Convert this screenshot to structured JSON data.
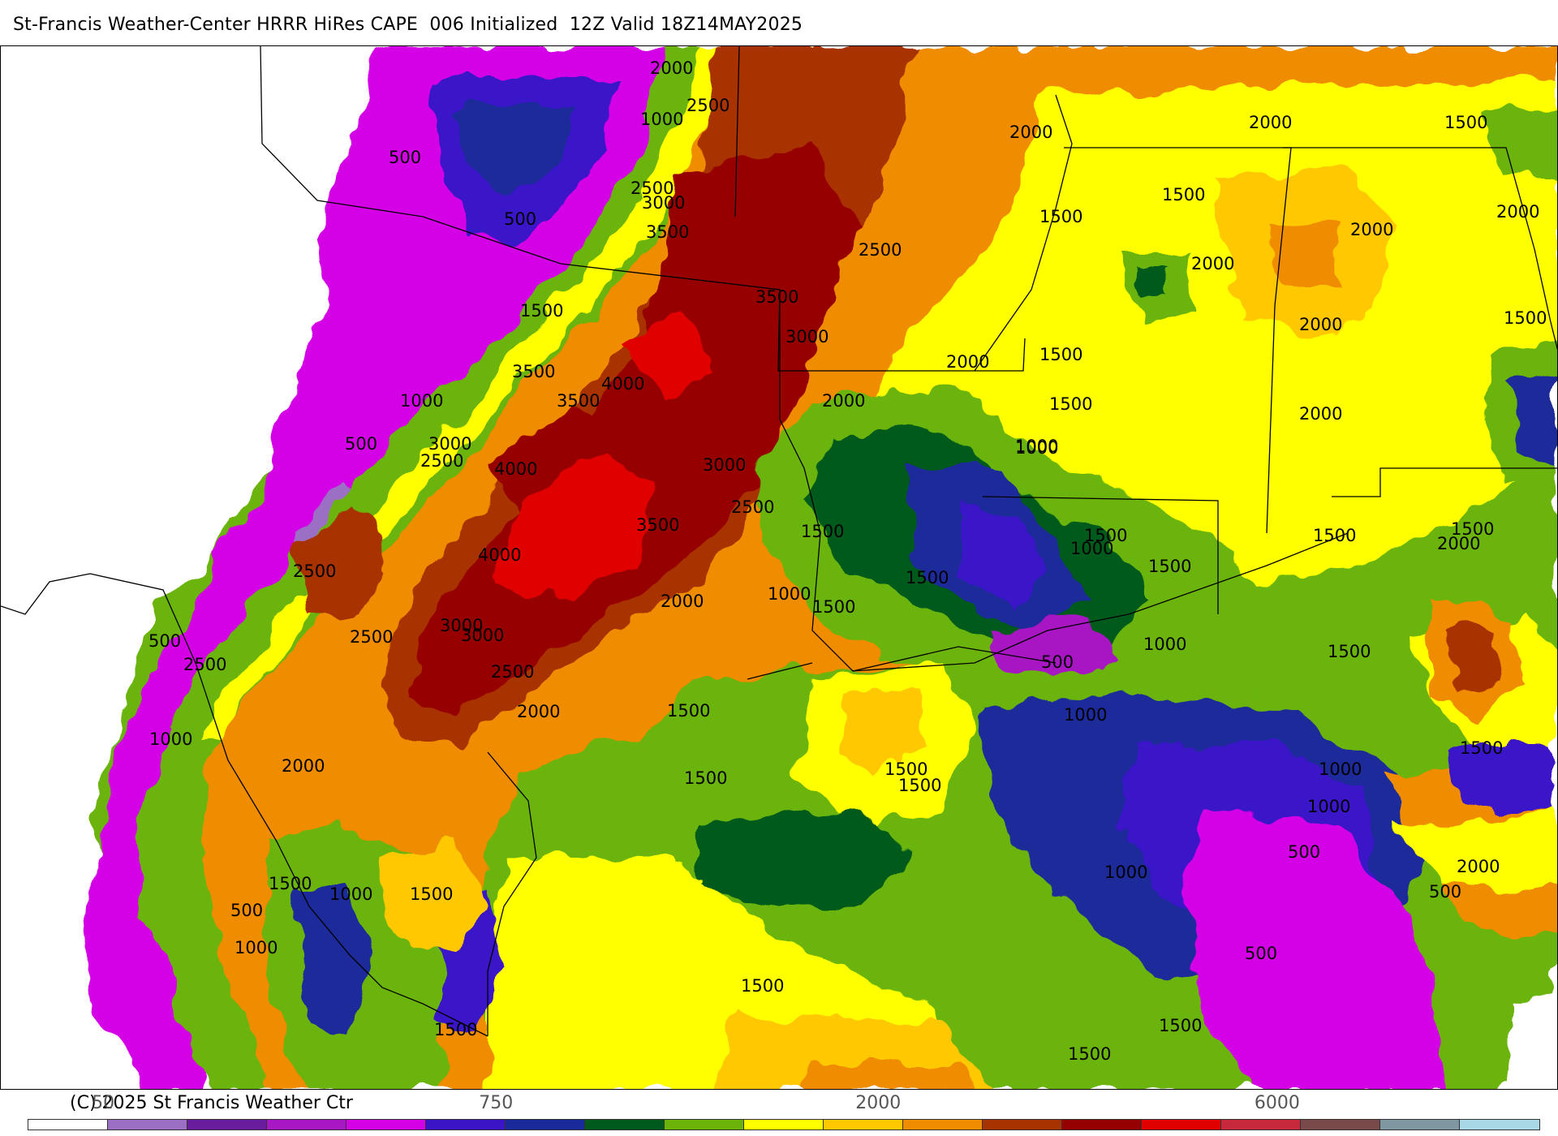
{
  "title": "St-Francis Weather-Center HRRR HiRes CAPE  006 Initialized  12Z Valid 18Z14MAY2025",
  "copyright": "(C) 2025 St Francis Weather Ctr",
  "legend": {
    "colors": [
      "#ffffff",
      "#9b6fc4",
      "#6a1c9e",
      "#a817c4",
      "#d400e6",
      "#3b14c8",
      "#1b2a9a",
      "#005a1e",
      "#6ab40a",
      "#ffff00",
      "#ffc800",
      "#ef8c00",
      "#a83200",
      "#960000",
      "#e10000",
      "#c8283c",
      "#7a4a4a",
      "#7f97a0",
      "#a8d8e6"
    ],
    "tick_labels": [
      {
        "text": "50",
        "at": 0.05
      },
      {
        "text": "750",
        "at": 0.31
      },
      {
        "text": "2000",
        "at": 0.563
      },
      {
        "text": "6000",
        "at": 0.827
      }
    ]
  },
  "contour_labels": [
    "2000",
    "2500",
    "1000",
    "500",
    "2500",
    "3000",
    "3500",
    "500",
    "1500",
    "3500",
    "3000",
    "2500",
    "2000",
    "1500",
    "1500",
    "2000",
    "2000",
    "2000",
    "1500",
    "2000",
    "2000",
    "1500",
    "2000",
    "2000",
    "1500",
    "1500",
    "2000",
    "1000",
    "3500",
    "3000",
    "4000",
    "3500",
    "1000",
    "3000",
    "2500",
    "500",
    "4000",
    "3000",
    "2500",
    "3500",
    "1000",
    "1500",
    "1000",
    "1500",
    "1500",
    "1500",
    "1000",
    "1500",
    "2000",
    "1500",
    "2000",
    "4000",
    "2500",
    "1500",
    "3000",
    "2500",
    "500",
    "2500",
    "2500",
    "500",
    "1000",
    "2000",
    "1500",
    "1000",
    "1500",
    "1000",
    "1500",
    "2000",
    "1000",
    "1500",
    "1500",
    "2000",
    "1500",
    "1000",
    "500",
    "1000",
    "1000",
    "1500",
    "1500",
    "500",
    "1500",
    "1000",
    "500",
    "1500",
    "1500",
    "500",
    "1500"
  ],
  "icons": {
    "map": "cape-shaded-contour-map"
  }
}
